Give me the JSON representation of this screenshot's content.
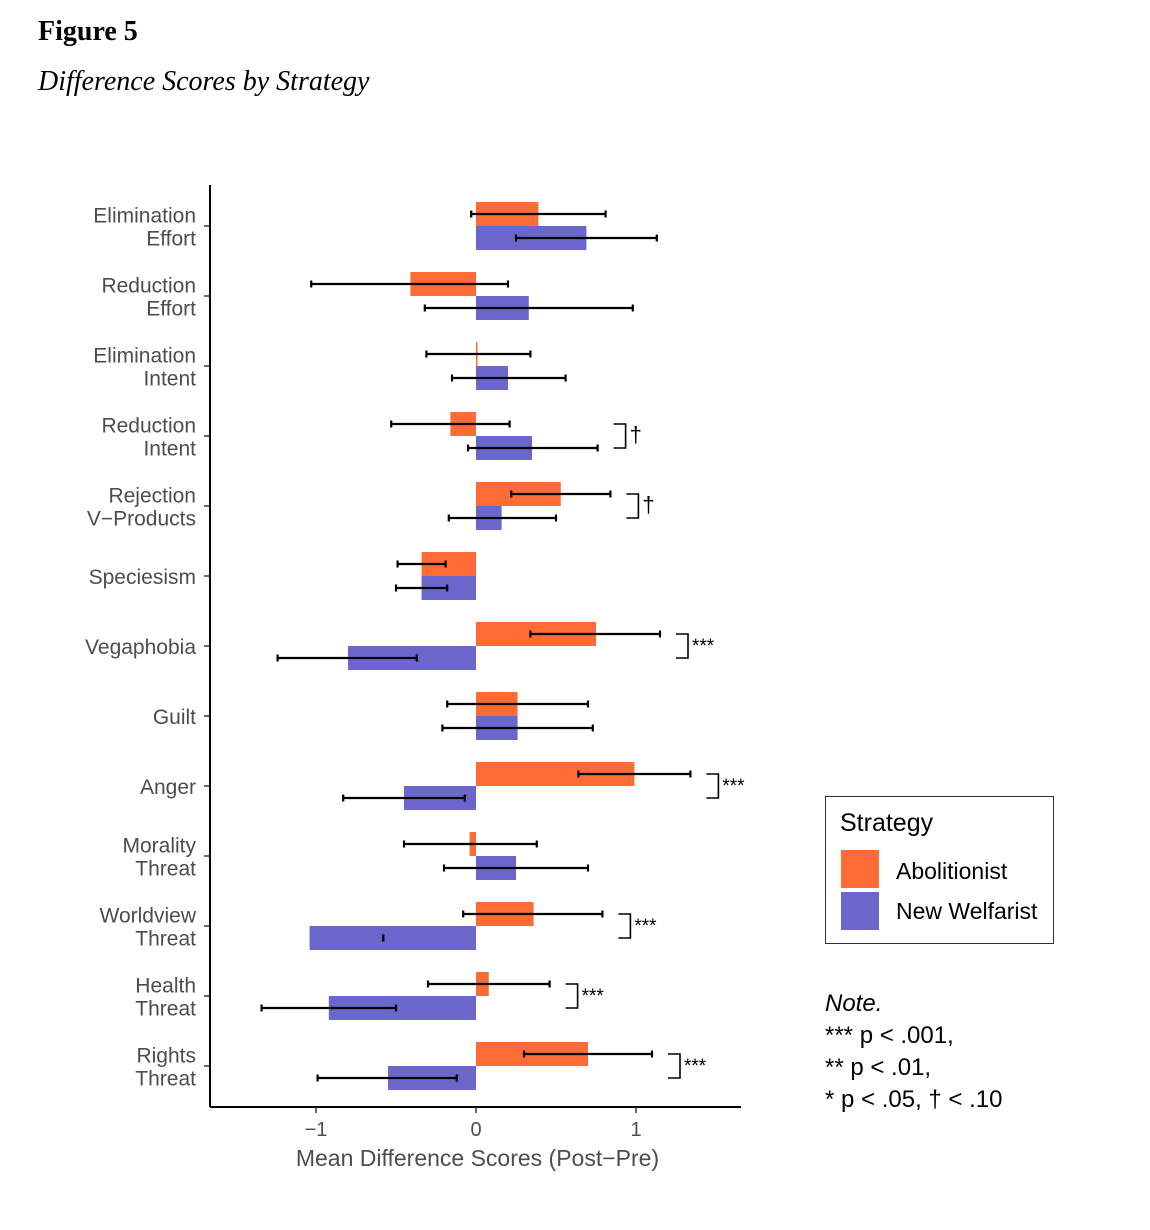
{
  "figure": {
    "label": "Figure 5",
    "title": "Difference Scores by Strategy"
  },
  "colors": {
    "abolitionist": "#FF6B35",
    "new_welfarist": "#6B66CC",
    "axis": "#000000",
    "text": "#4d4d4d"
  },
  "chart_data": {
    "type": "bar",
    "orientation": "horizontal",
    "xlabel": "Mean Difference Scores (Post−Pre)",
    "xticks": [
      "−1",
      "0",
      "1"
    ],
    "xtick_values": [
      -1,
      0,
      1
    ],
    "xlim": [
      -1.65,
      1.65
    ],
    "legend_title": "Strategy",
    "legend_position": "right",
    "categories": [
      [
        "Elimination",
        "Effort"
      ],
      [
        "Reduction",
        "Effort"
      ],
      [
        "Elimination",
        "Intent"
      ],
      [
        "Reduction",
        "Intent"
      ],
      [
        "Rejection",
        "V−Products"
      ],
      [
        "Speciesism"
      ],
      [
        "Vegaphobia"
      ],
      [
        "Guilt"
      ],
      [
        "Anger"
      ],
      [
        "Morality",
        "Threat"
      ],
      [
        "Worldview",
        "Threat"
      ],
      [
        "Health",
        "Threat"
      ],
      [
        "Rights",
        "Threat"
      ]
    ],
    "series": [
      {
        "name": "Abolitionist",
        "values": [
          0.39,
          -0.41,
          0.005,
          -0.16,
          0.53,
          -0.34,
          0.75,
          0.26,
          0.99,
          -0.04,
          0.36,
          0.08,
          0.7
        ],
        "ci_low": [
          -0.03,
          -1.03,
          -0.31,
          -0.53,
          0.22,
          -0.49,
          0.34,
          -0.18,
          0.64,
          -0.45,
          -0.08,
          -0.3,
          0.3
        ],
        "ci_high": [
          0.81,
          0.2,
          0.34,
          0.21,
          0.84,
          -0.19,
          1.15,
          0.7,
          1.34,
          0.38,
          0.79,
          0.46,
          1.1
        ]
      },
      {
        "name": "New Welfarist",
        "values": [
          0.69,
          0.33,
          0.2,
          0.35,
          0.16,
          -0.34,
          -0.8,
          0.26,
          -0.45,
          0.25,
          -1.04,
          -0.92,
          -0.55
        ],
        "ci_low": [
          0.25,
          -0.32,
          -0.15,
          -0.05,
          -0.17,
          -0.5,
          -1.24,
          -0.21,
          -0.83,
          -0.2,
          -0.58,
          -1.34,
          -0.99
        ],
        "ci_high": [
          1.13,
          0.98,
          0.56,
          0.76,
          0.5,
          -0.18,
          -0.37,
          0.73,
          -0.07,
          0.7,
          -0.58,
          -0.5,
          -0.12
        ]
      }
    ],
    "significance": [
      {
        "category_index": 3,
        "label": "†"
      },
      {
        "category_index": 4,
        "label": "†"
      },
      {
        "category_index": 6,
        "label": "***"
      },
      {
        "category_index": 8,
        "label": "***"
      },
      {
        "category_index": 10,
        "label": "***"
      },
      {
        "category_index": 11,
        "label": "***"
      },
      {
        "category_index": 12,
        "label": "***"
      }
    ]
  },
  "note": {
    "title": "Note.",
    "lines": [
      "*** p < .001,",
      "** p < .01,",
      "* p < .05, † < .10"
    ]
  }
}
